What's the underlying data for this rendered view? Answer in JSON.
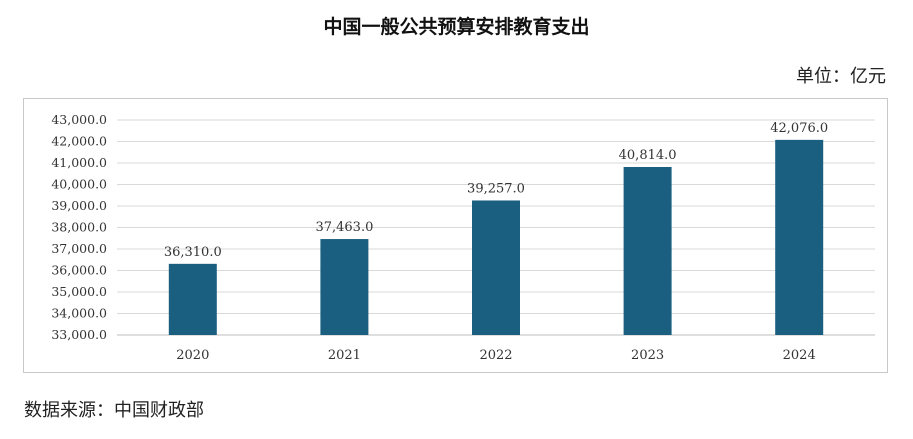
{
  "title": "中国一般公共预算安排教育支出",
  "unit_label": "单位：亿元",
  "source_label": "数据来源：中国财政部",
  "colors": {
    "bar": "#1a5f80",
    "grid": "#d9d9d9",
    "axis": "#bfbfbf",
    "text": "#333333"
  },
  "chart_data": {
    "type": "bar",
    "title": "中国一般公共预算安排教育支出",
    "categories": [
      "2020",
      "2021",
      "2022",
      "2023",
      "2024"
    ],
    "values": [
      36310.0,
      37463.0,
      39257.0,
      40814.0,
      42076.0
    ],
    "value_labels": [
      "36,310.0",
      "37,463.0",
      "39,257.0",
      "40,814.0",
      "42,076.0"
    ],
    "yticks": [
      "33,000.0",
      "34,000.0",
      "35,000.0",
      "36,000.0",
      "37,000.0",
      "38,000.0",
      "39,000.0",
      "40,000.0",
      "41,000.0",
      "42,000.0",
      "43,000.0"
    ],
    "ylim": [
      33000,
      43000
    ],
    "grid": true,
    "legend": "none"
  }
}
